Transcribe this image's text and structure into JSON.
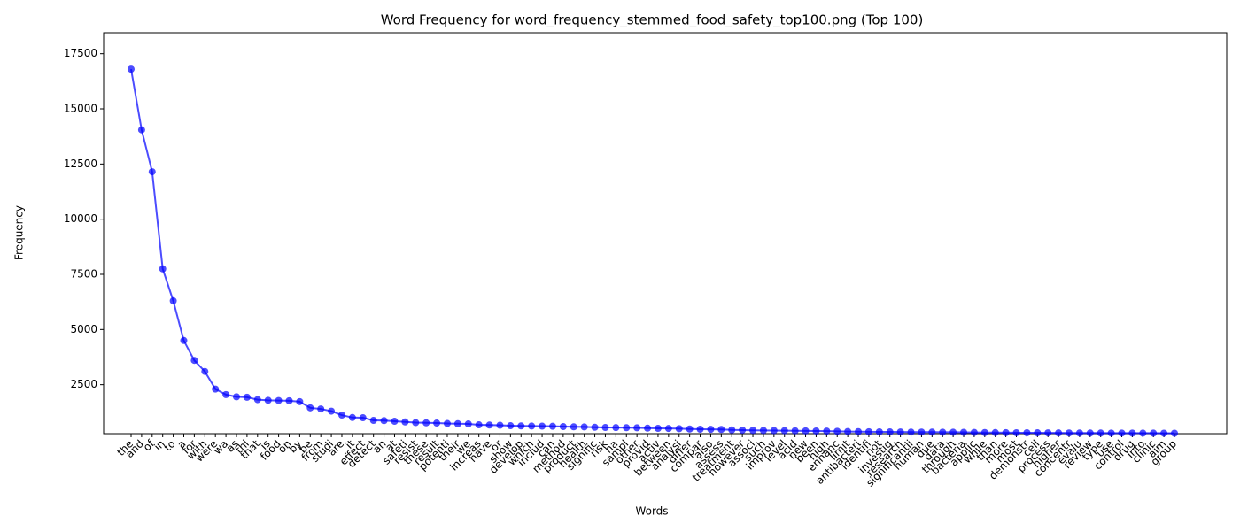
{
  "chart_data": {
    "type": "line",
    "title": "Word Frequency for word_frequency_stemmed_food_safety_top100.png (Top 100)",
    "x_label": "Words",
    "y_label": "Frequency",
    "categories": [
      "the",
      "and",
      "of",
      "in",
      "to",
      "a",
      "for",
      "with",
      "were",
      "wa",
      "as",
      "thi",
      "that",
      "is",
      "food",
      "on",
      "by",
      "be",
      "from",
      "studi",
      "are",
      "it",
      "effect",
      "detect",
      "an",
      "at",
      "safeti",
      "resist",
      "these",
      "result",
      "potenti",
      "their",
      "we",
      "increas",
      "have",
      "or",
      "show",
      "develop",
      "which",
      "includ",
      "can",
      "method",
      "product",
      "health",
      "signific",
      "risk",
      "ha",
      "sampl",
      "other",
      "provid",
      "activ",
      "between",
      "analysi",
      "differ",
      "compar",
      "also",
      "assess",
      "treatment",
      "however",
      "associ",
      "such",
      "improv",
      "level",
      "acid",
      "new",
      "been",
      "high",
      "enhanc",
      "limit",
      "antibacteri",
      "identifi",
      "not",
      "investig",
      "research",
      "significantli",
      "human",
      "due",
      "data",
      "through",
      "bacteria",
      "applic",
      "while",
      "than",
      "more",
      "most",
      "demonstr",
      "cell",
      "process",
      "higher",
      "concentr",
      "evalu",
      "review",
      "type",
      "use",
      "control",
      "drug",
      "into",
      "clinic",
      "aim",
      "group"
    ],
    "series": [
      {
        "name": "Frequency",
        "color": "#0000ff",
        "values": [
          16800,
          14050,
          12150,
          7750,
          6300,
          4500,
          3600,
          3100,
          2300,
          2050,
          1950,
          1930,
          1820,
          1790,
          1780,
          1770,
          1730,
          1450,
          1400,
          1300,
          1120,
          1010,
          1000,
          880,
          870,
          840,
          810,
          780,
          770,
          760,
          740,
          730,
          720,
          680,
          670,
          660,
          640,
          630,
          625,
          620,
          615,
          600,
          590,
          585,
          570,
          560,
          555,
          550,
          545,
          530,
          520,
          515,
          505,
          490,
          480,
          475,
          470,
          450,
          440,
          430,
          425,
          420,
          415,
          410,
          405,
          400,
          395,
          385,
          375,
          370,
          365,
          360,
          358,
          355,
          352,
          350,
          348,
          345,
          343,
          340,
          335,
          330,
          328,
          325,
          322,
          320,
          318,
          316,
          314,
          312,
          310,
          309,
          308,
          307,
          306,
          305,
          304,
          303,
          302,
          300
        ]
      }
    ],
    "ylim": [
      280,
      18450
    ],
    "yticks": [
      2500,
      5000,
      7500,
      10000,
      12500,
      15000,
      17500
    ],
    "grid": false
  }
}
